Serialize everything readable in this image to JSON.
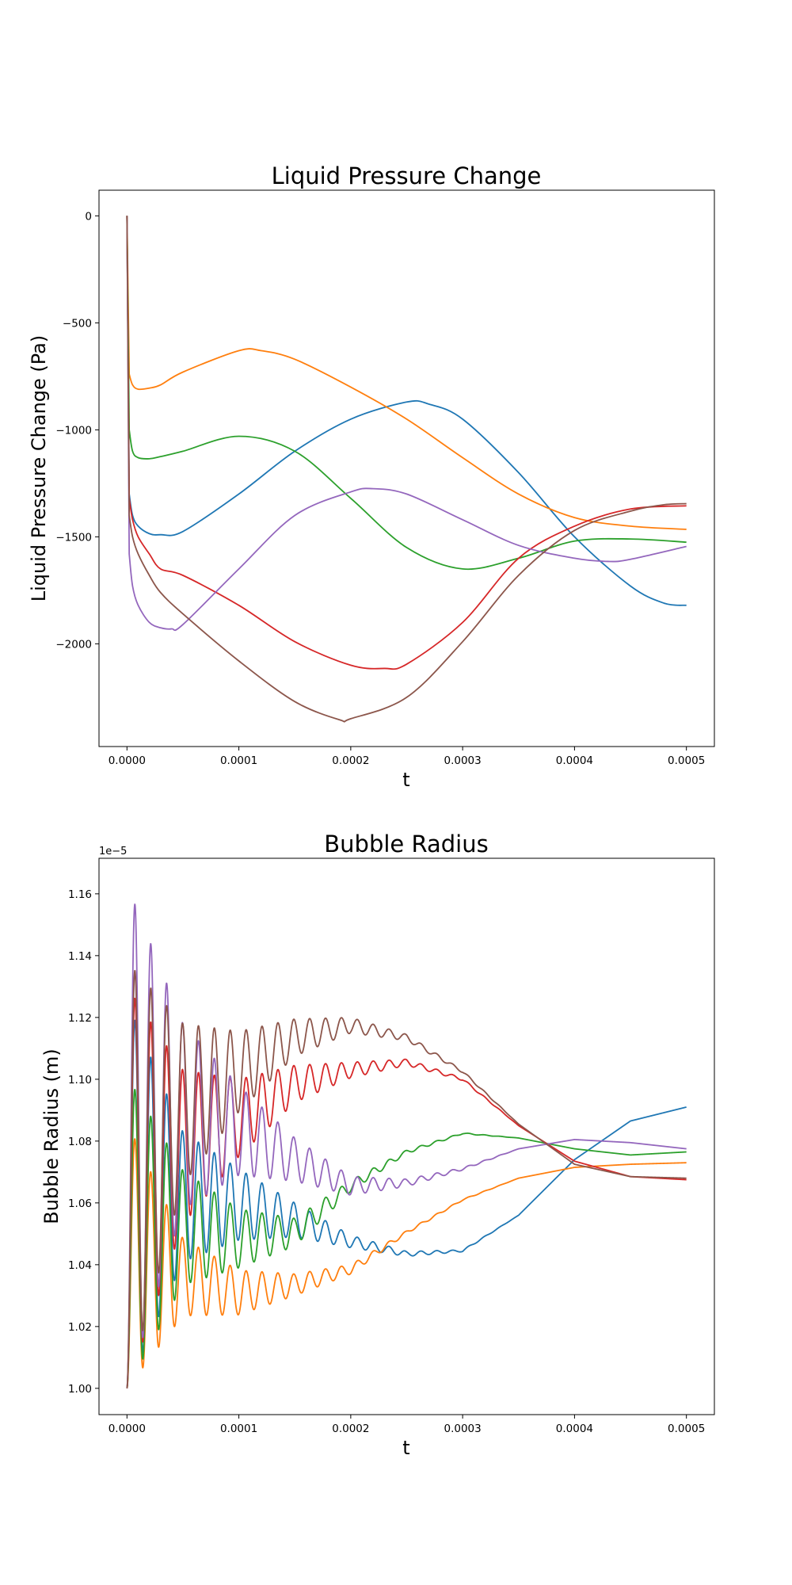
{
  "colors": {
    "s1": "#1f77b4",
    "s2": "#ff7f0e",
    "s3": "#2ca02c",
    "s4": "#d62728",
    "s5": "#9467bd",
    "s6": "#8c564b"
  },
  "chart_data": [
    {
      "type": "line",
      "title": "Liquid Pressure Change",
      "xlabel": "t",
      "ylabel": "Liquid Pressure Change (Pa)",
      "xlim": [
        -2.5e-05,
        0.000525
      ],
      "ylim": [
        -2480,
        120
      ],
      "xticks": [
        0,
        0.0001,
        0.0002,
        0.0003,
        0.0004,
        0.0005
      ],
      "xtick_labels": [
        "0.0000",
        "0.0001",
        "0.0002",
        "0.0003",
        "0.0004",
        "0.0005"
      ],
      "yticks": [
        0,
        -500,
        -1000,
        -1500,
        -2000
      ],
      "ytick_labels": [
        "0",
        "−500",
        "−1000",
        "−1500",
        "−2000"
      ],
      "grid": false,
      "series": [
        {
          "color_key": "s1",
          "x": [
            0,
            2e-06,
            5e-06,
            1e-05,
            2e-05,
            3e-05,
            5e-05,
            0.0001,
            0.00015,
            0.0002,
            0.00025,
            0.00027,
            0.0003,
            0.00035,
            0.0004,
            0.00045,
            0.00048,
            0.0005
          ],
          "y": [
            0,
            -1300,
            -1400,
            -1450,
            -1485,
            -1490,
            -1475,
            -1300,
            -1100,
            -950,
            -870,
            -880,
            -950,
            -1200,
            -1500,
            -1730,
            -1810,
            -1820
          ]
        },
        {
          "color_key": "s2",
          "x": [
            0,
            2e-06,
            5e-06,
            1e-05,
            2e-05,
            3e-05,
            5e-05,
            0.0001,
            0.00012,
            0.00015,
            0.0002,
            0.00025,
            0.0003,
            0.00035,
            0.0004,
            0.00045,
            0.0005
          ],
          "y": [
            0,
            -740,
            -790,
            -810,
            -805,
            -790,
            -730,
            -630,
            -630,
            -670,
            -800,
            -950,
            -1130,
            -1300,
            -1410,
            -1450,
            -1465
          ]
        },
        {
          "color_key": "s3",
          "x": [
            0,
            2e-06,
            5e-06,
            1e-05,
            2e-05,
            3e-05,
            5e-05,
            0.0001,
            0.00015,
            0.0002,
            0.00025,
            0.0003,
            0.00035,
            0.0004,
            0.00045,
            0.0005
          ],
          "y": [
            0,
            -1000,
            -1100,
            -1130,
            -1135,
            -1125,
            -1100,
            -1030,
            -1100,
            -1320,
            -1550,
            -1650,
            -1600,
            -1520,
            -1510,
            -1525
          ]
        },
        {
          "color_key": "s4",
          "x": [
            0,
            2e-06,
            5e-06,
            1e-05,
            2e-05,
            3e-05,
            5e-05,
            0.0001,
            0.00015,
            0.0002,
            0.00023,
            0.00025,
            0.0003,
            0.00035,
            0.0004,
            0.00045,
            0.0005
          ],
          "y": [
            0,
            -1320,
            -1420,
            -1500,
            -1580,
            -1650,
            -1680,
            -1820,
            -1990,
            -2100,
            -2115,
            -2095,
            -1900,
            -1600,
            -1450,
            -1370,
            -1355
          ]
        },
        {
          "color_key": "s5",
          "x": [
            0,
            2e-06,
            5e-06,
            1e-05,
            2e-05,
            3e-05,
            4e-05,
            5e-05,
            0.0001,
            0.00015,
            0.0002,
            0.00022,
            0.00025,
            0.0003,
            0.00035,
            0.0004,
            0.00043,
            0.00045,
            0.0005
          ],
          "y": [
            0,
            -1580,
            -1730,
            -1820,
            -1900,
            -1925,
            -1930,
            -1910,
            -1650,
            -1400,
            -1290,
            -1275,
            -1300,
            -1420,
            -1540,
            -1600,
            -1615,
            -1605,
            -1545
          ]
        },
        {
          "color_key": "s6",
          "x": [
            0,
            2e-06,
            5e-06,
            1e-05,
            2e-05,
            3e-05,
            5e-05,
            0.0001,
            0.00015,
            0.00019,
            0.0002,
            0.00025,
            0.0003,
            0.00035,
            0.0004,
            0.00045,
            0.00048,
            0.0005
          ],
          "y": [
            0,
            -1400,
            -1500,
            -1580,
            -1680,
            -1760,
            -1860,
            -2080,
            -2270,
            -2355,
            -2350,
            -2250,
            -1990,
            -1680,
            -1470,
            -1380,
            -1350,
            -1345
          ]
        }
      ]
    },
    {
      "type": "line",
      "title": "Bubble Radius",
      "xlabel": "t",
      "ylabel": "Bubble Radius (m)",
      "offset_text": "1e−5",
      "xlim": [
        -2.5e-05,
        0.000525
      ],
      "ylim": [
        0.9915,
        1.1715
      ],
      "xticks": [
        0,
        0.0001,
        0.0002,
        0.0003,
        0.0004,
        0.0005
      ],
      "xtick_labels": [
        "0.0000",
        "0.0001",
        "0.0002",
        "0.0003",
        "0.0004",
        "0.0005"
      ],
      "yticks": [
        1.0,
        1.02,
        1.04,
        1.06,
        1.08,
        1.1,
        1.12,
        1.14,
        1.16
      ],
      "ytick_labels": [
        "1.00",
        "1.02",
        "1.04",
        "1.06",
        "1.08",
        "1.10",
        "1.12",
        "1.14",
        "1.16"
      ],
      "grid": false,
      "oscillation_period": 1.42e-05,
      "series": [
        {
          "color_key": "s1",
          "x": [
            0,
            5e-05,
            0.0001,
            0.00015,
            0.0002,
            0.00025,
            0.0003,
            0.00035,
            0.0004,
            0.00045,
            0.0005
          ],
          "y": [
            1.0625,
            1.062,
            1.0595,
            1.0545,
            1.0475,
            1.0435,
            1.0445,
            1.056,
            1.074,
            1.0865,
            1.091
          ],
          "amp": [
            0.0625,
            0.021,
            0.0115,
            0.0055,
            0.002,
            0.0008,
            0.0003,
            0,
            0,
            0,
            0
          ]
        },
        {
          "color_key": "s2",
          "x": [
            0,
            5e-05,
            0.0001,
            0.00015,
            0.0002,
            0.00025,
            0.0003,
            0.00035,
            0.0004,
            0.00045,
            0.0005
          ],
          "y": [
            1.043,
            1.036,
            1.031,
            1.0335,
            1.0385,
            1.0505,
            1.061,
            1.068,
            1.0715,
            1.0725,
            1.073
          ],
          "amp": [
            0.043,
            0.0125,
            0.0072,
            0.0035,
            0.0015,
            0.0005,
            0.0002,
            0,
            0,
            0,
            0
          ]
        },
        {
          "color_key": "s3",
          "x": [
            0,
            5e-05,
            0.0001,
            0.00015,
            0.0002,
            0.00025,
            0.0003,
            0.00035,
            0.0004,
            0.00045,
            0.0005
          ],
          "y": [
            1.0505,
            1.052,
            1.0485,
            1.0505,
            1.0655,
            1.0765,
            1.0825,
            1.081,
            1.0775,
            1.0755,
            1.0765
          ],
          "amp": [
            0.0505,
            0.0185,
            0.0095,
            0.0045,
            0.0018,
            0.0006,
            0.0002,
            0,
            0,
            0,
            0
          ]
        },
        {
          "color_key": "s4",
          "x": [
            0,
            5e-05,
            0.0001,
            0.00015,
            0.0002,
            0.00025,
            0.0003,
            0.00035,
            0.0004,
            0.00045,
            0.0005
          ],
          "y": [
            1.065,
            1.078,
            1.0875,
            1.0985,
            1.103,
            1.1055,
            1.1,
            1.085,
            1.0735,
            1.0685,
            1.0675
          ],
          "amp": [
            0.065,
            0.025,
            0.0125,
            0.006,
            0.0025,
            0.001,
            0.0004,
            0,
            0,
            0,
            0
          ]
        },
        {
          "color_key": "s5",
          "x": [
            0,
            5e-05,
            0.0001,
            0.00015,
            0.0002,
            0.00025,
            0.0003,
            0.00035,
            0.0004,
            0.00045,
            0.0005
          ],
          "y": [
            1.0815,
            1.088,
            1.0835,
            1.074,
            1.0655,
            1.0665,
            1.071,
            1.0775,
            1.0805,
            1.0795,
            1.0775
          ],
          "amp": [
            0.0815,
            0.03,
            0.0145,
            0.007,
            0.003,
            0.0012,
            0.0004,
            0,
            0,
            0,
            0
          ]
        },
        {
          "color_key": "s6",
          "x": [
            0,
            5e-05,
            0.0001,
            0.00015,
            0.0002,
            0.00025,
            0.0003,
            0.00035,
            0.0004,
            0.00045,
            0.0005
          ],
          "y": [
            1.069,
            1.092,
            1.1025,
            1.1135,
            1.1175,
            1.1135,
            1.1025,
            1.0855,
            1.0725,
            1.0685,
            1.068
          ],
          "amp": [
            0.069,
            0.026,
            0.013,
            0.006,
            0.0025,
            0.001,
            0.0004,
            0,
            0,
            0,
            0
          ]
        }
      ]
    }
  ]
}
